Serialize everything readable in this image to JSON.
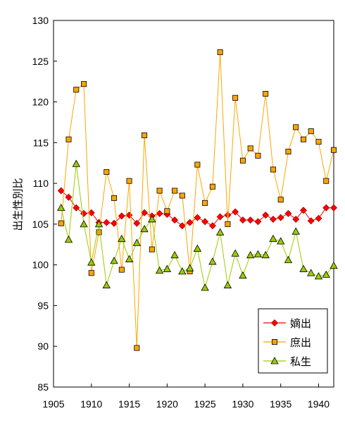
{
  "chart_data": {
    "type": "line",
    "title": "",
    "xlabel": "",
    "ylabel": "出生性別比",
    "xlim": [
      1905,
      1942
    ],
    "ylim": [
      85,
      130
    ],
    "x_ticks": [
      1905,
      1910,
      1915,
      1920,
      1925,
      1930,
      1935,
      1940
    ],
    "y_ticks": [
      85,
      90,
      95,
      100,
      105,
      110,
      115,
      120,
      125,
      130
    ],
    "grid": false,
    "legend_position": "bottom-right",
    "x": [
      1906,
      1907,
      1908,
      1909,
      1910,
      1911,
      1912,
      1913,
      1914,
      1915,
      1916,
      1917,
      1918,
      1919,
      1920,
      1921,
      1922,
      1923,
      1924,
      1925,
      1926,
      1927,
      1928,
      1929,
      1930,
      1931,
      1932,
      1933,
      1934,
      1935,
      1936,
      1937,
      1938,
      1939,
      1940,
      1941,
      1942
    ],
    "series": [
      {
        "name": "嫡出",
        "color": "#ff0000",
        "line_color": "#ff0000",
        "marker": "diamond",
        "values": [
          109.1,
          108.3,
          107.0,
          106.3,
          106.4,
          105.2,
          105.2,
          105.1,
          106.0,
          106.1,
          105.1,
          106.4,
          106.0,
          106.3,
          106.2,
          105.5,
          104.8,
          105.2,
          105.8,
          105.3,
          104.8,
          105.9,
          106.1,
          106.5,
          105.5,
          105.5,
          105.3,
          106.1,
          105.6,
          105.8,
          106.3,
          105.6,
          106.7,
          105.4,
          105.7,
          107.0,
          107.0
        ]
      },
      {
        "name": "庶出",
        "color": "#ffa500",
        "line_color": "#ffa500",
        "marker": "square",
        "values": [
          105.1,
          115.4,
          121.5,
          122.2,
          99.0,
          104.0,
          111.4,
          108.2,
          99.4,
          110.3,
          89.8,
          115.9,
          101.9,
          109.1,
          106.6,
          109.1,
          108.5,
          99.2,
          112.3,
          107.6,
          109.6,
          126.1,
          105.0,
          120.5,
          112.8,
          114.3,
          113.4,
          121.0,
          111.7,
          108.0,
          113.9,
          116.9,
          115.4,
          116.4,
          115.1,
          110.3,
          114.1
        ]
      },
      {
        "name": "私生",
        "color": "#99cc00",
        "line_color": "#99cc00",
        "marker": "triangle",
        "values": [
          107.0,
          103.1,
          112.4,
          105.0,
          100.3,
          105.0,
          97.5,
          100.5,
          103.2,
          100.7,
          102.7,
          104.4,
          105.6,
          99.3,
          99.5,
          101.2,
          99.2,
          99.6,
          102.0,
          97.2,
          100.4,
          104.0,
          97.5,
          101.4,
          98.7,
          101.2,
          101.3,
          101.2,
          103.2,
          102.9,
          100.6,
          104.1,
          99.5,
          99.0,
          98.6,
          98.8,
          99.9
        ]
      }
    ]
  }
}
